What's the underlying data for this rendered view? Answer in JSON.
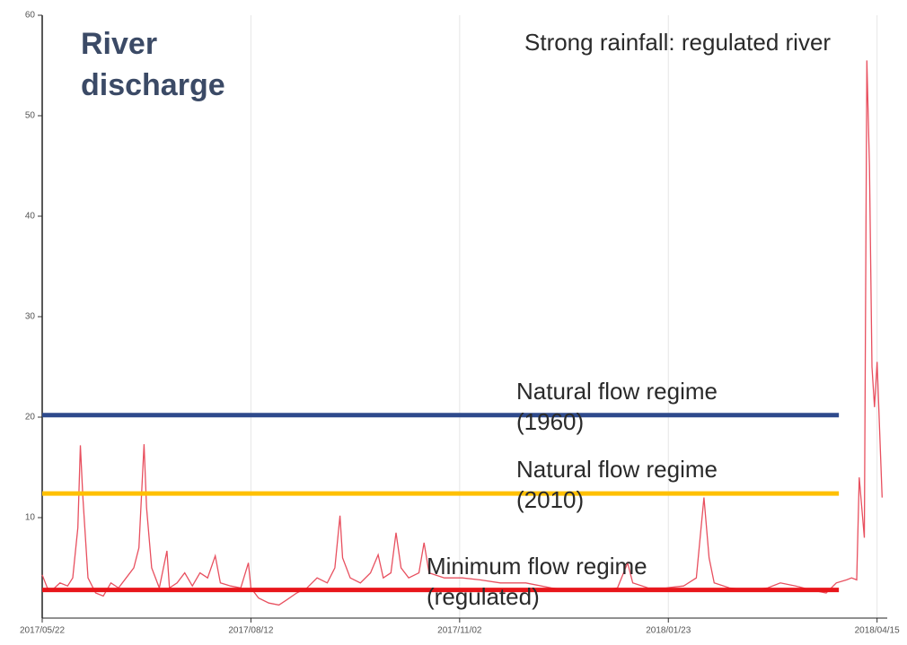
{
  "chart_data": {
    "type": "line",
    "title": "River discharge",
    "annotation": "Strong rainfall: regulated river",
    "color": "#e8505f",
    "x": [
      "2017/05/22",
      "2017/05/24",
      "2017/05/26",
      "2017/05/29",
      "2017/06/01",
      "2017/06/03",
      "2017/06/05",
      "2017/06/06",
      "2017/06/07",
      "2017/06/09",
      "2017/06/12",
      "2017/06/15",
      "2017/06/18",
      "2017/06/21",
      "2017/06/24",
      "2017/06/27",
      "2017/06/29",
      "2017/07/01",
      "2017/07/02",
      "2017/07/04",
      "2017/07/07",
      "2017/07/10",
      "2017/07/11",
      "2017/07/14",
      "2017/07/17",
      "2017/07/20",
      "2017/07/23",
      "2017/07/26",
      "2017/07/29",
      "2017/07/31",
      "2017/08/04",
      "2017/08/08",
      "2017/08/11",
      "2017/08/12",
      "2017/08/15",
      "2017/08/19",
      "2017/08/23",
      "2017/08/26",
      "2017/08/30",
      "2017/09/03",
      "2017/09/07",
      "2017/09/11",
      "2017/09/14",
      "2017/09/16",
      "2017/09/17",
      "2017/09/20",
      "2017/09/24",
      "2017/09/28",
      "2017/10/01",
      "2017/10/03",
      "2017/10/06",
      "2017/10/08",
      "2017/10/10",
      "2017/10/13",
      "2017/10/17",
      "2017/10/19",
      "2017/10/21",
      "2017/10/27",
      "2017/11/03",
      "2017/11/10",
      "2017/11/18",
      "2017/11/28",
      "2017/12/08",
      "2017/12/18",
      "2017/12/28",
      "2018/01/03",
      "2018/01/07",
      "2018/01/09",
      "2018/01/15",
      "2018/01/22",
      "2018/01/29",
      "2018/02/03",
      "2018/02/06",
      "2018/02/08",
      "2018/02/10",
      "2018/02/16",
      "2018/02/24",
      "2018/03/03",
      "2018/03/08",
      "2018/03/14",
      "2018/03/20",
      "2018/03/26",
      "2018/03/30",
      "2018/04/03",
      "2018/04/05",
      "2018/04/07",
      "2018/04/08",
      "2018/04/10",
      "2018/04/11",
      "2018/04/12",
      "2018/04/13",
      "2018/04/14",
      "2018/04/15",
      "2018/04/17"
    ],
    "values": [
      4.3,
      3,
      2.8,
      3.5,
      3.2,
      4,
      9,
      17.2,
      12,
      4,
      2.5,
      2.2,
      3.5,
      3,
      4,
      5,
      7,
      17.3,
      11,
      5,
      3,
      6.7,
      3,
      3.5,
      4.5,
      3.2,
      4.5,
      4,
      6.2,
      3.5,
      3.2,
      3,
      5.5,
      3,
      2,
      1.5,
      1.3,
      1.8,
      2.5,
      3,
      4,
      3.5,
      5,
      10.2,
      6,
      4,
      3.5,
      4.5,
      6.3,
      4,
      4.5,
      8.5,
      5,
      4,
      4.5,
      7.5,
      4.5,
      4,
      4,
      3.8,
      3.5,
      3.5,
      3,
      2.7,
      2.8,
      3,
      5.5,
      3.5,
      3,
      3,
      3.2,
      4,
      12,
      6,
      3.5,
      3,
      2.8,
      3,
      3.5,
      3.2,
      2.8,
      2.5,
      3.5,
      3.8,
      4,
      3.8,
      14,
      8,
      55.5,
      45,
      25,
      21,
      25.5,
      12
    ],
    "xlim": [
      "2017/05/22",
      "2018/04/19"
    ],
    "xticks": [
      "2017/05/22",
      "2017/08/12",
      "2017/11/02",
      "2018/01/23",
      "2018/04/15"
    ],
    "ylim": [
      0,
      60
    ],
    "yticks": [
      10,
      20,
      30,
      40,
      50,
      60
    ],
    "grid": true,
    "reference_lines": [
      {
        "label": "Natural flow regime (1960)",
        "value": 20.2,
        "color": "#2e4a8c",
        "x": [
          "2017/05/22",
          "2018/03/31"
        ]
      },
      {
        "label": "Natural flow regime (2010)",
        "value": 12.4,
        "color": "#ffc000",
        "x": [
          "2017/05/22",
          "2018/03/31"
        ]
      },
      {
        "label": "Minimum flow regime (regulated)",
        "value": 2.8,
        "color": "#e8161b",
        "x": [
          "2017/05/22",
          "2018/03/31"
        ]
      }
    ]
  }
}
